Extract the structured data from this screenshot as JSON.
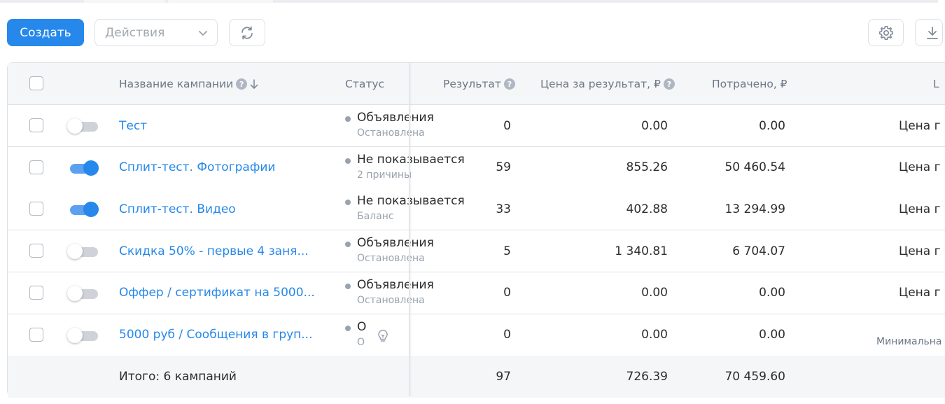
{
  "toolbar": {
    "create_label": "Создать",
    "actions_placeholder": "Действия"
  },
  "table": {
    "headers": {
      "name": "Название кампании",
      "status": "Статус",
      "result": "Результат",
      "cost_per_result": "Цена за результат, ₽",
      "spent": "Потрачено, ₽",
      "extra": "L"
    },
    "rows": [
      {
        "enabled": false,
        "name": "Тест",
        "status": "Объявления",
        "status_sub": "Остановлена",
        "result": "0",
        "cost": "0.00",
        "spent": "0.00",
        "extra": "Цена г"
      },
      {
        "enabled": true,
        "name": "Сплит-тест. Фотографии",
        "status": "Не показывается",
        "status_sub": "2 причины",
        "result": "59",
        "cost": "855.26",
        "spent": "50 460.54",
        "extra": "Цена г"
      },
      {
        "enabled": true,
        "name": "Сплит-тест. Видео",
        "status": "Не показывается",
        "status_sub": "Баланс",
        "result": "33",
        "cost": "402.88",
        "spent": "13 294.99",
        "extra": "Цена г"
      },
      {
        "enabled": false,
        "name": "Скидка 50% - первые 4 заня...",
        "status": "Объявления",
        "status_sub": "Остановлена",
        "result": "5",
        "cost": "1 340.81",
        "spent": "6 704.07",
        "extra": "Цена г"
      },
      {
        "enabled": false,
        "name": "Оффер / сертификат на 5000...",
        "status": "Объявления",
        "status_sub": "Остановлена",
        "result": "0",
        "cost": "0.00",
        "spent": "0.00",
        "extra": "Цена г"
      },
      {
        "enabled": false,
        "name": "5000 руб / Сообщения в груп...",
        "status": "О",
        "status_sub": "О",
        "result": "0",
        "cost": "0.00",
        "spent": "0.00",
        "extra": "Минимальна"
      }
    ],
    "total": {
      "label": "Итого: 6 кампаний",
      "result": "97",
      "cost": "726.39",
      "spent": "70 459.60"
    }
  },
  "icons": {
    "accent": "#2688eb",
    "refresh": "refresh-icon",
    "settings": "gear-icon",
    "download": "download-icon"
  }
}
